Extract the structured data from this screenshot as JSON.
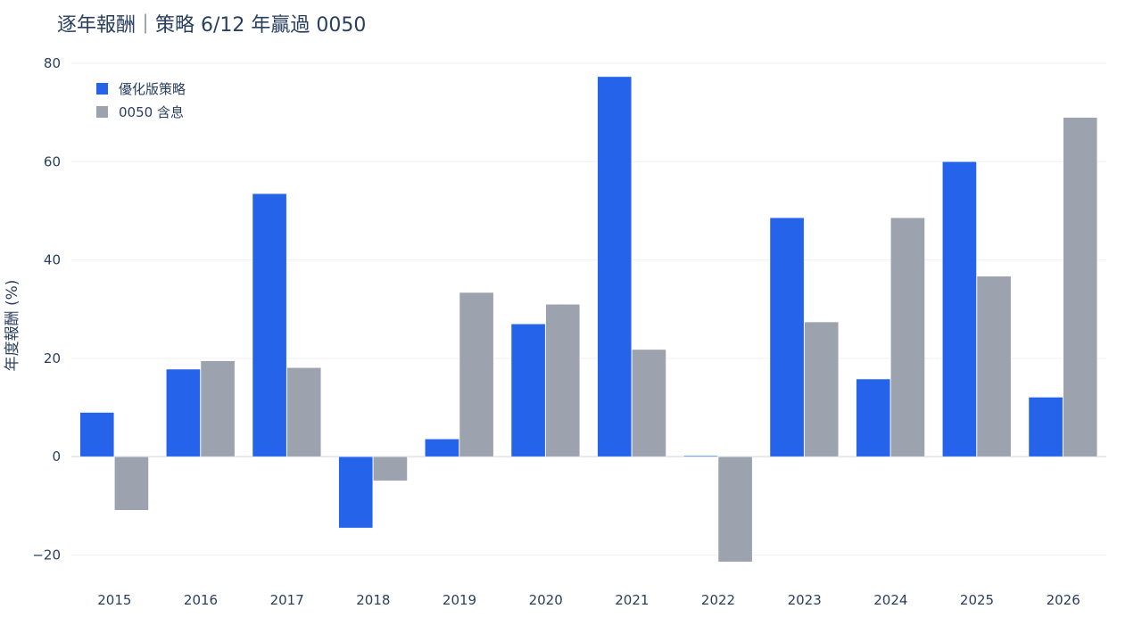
{
  "chart_data": {
    "type": "bar",
    "title": "逐年報酬｜策略 6/12 年贏過 0050",
    "xlabel": "",
    "ylabel": "年度報酬 (%)",
    "categories": [
      "2015",
      "2016",
      "2017",
      "2018",
      "2019",
      "2020",
      "2021",
      "2022",
      "2023",
      "2024",
      "2025",
      "2026"
    ],
    "series": [
      {
        "name": "優化版策略",
        "color": "#2563eb",
        "values": [
          9.0,
          17.8,
          53.5,
          -14.5,
          3.6,
          27.0,
          77.3,
          0.2,
          48.6,
          15.8,
          60.0,
          12.1
        ]
      },
      {
        "name": "0050 含息",
        "color": "#9ca3af",
        "values": [
          -10.9,
          19.5,
          18.1,
          -4.9,
          33.4,
          31.0,
          21.8,
          -21.4,
          27.4,
          48.6,
          36.7,
          69.0
        ]
      }
    ],
    "ylim": [
      -25,
      82
    ],
    "yticks": [
      -20,
      0,
      20,
      40,
      60,
      80
    ],
    "ytick_labels": [
      "−20",
      "0",
      "20",
      "40",
      "60",
      "80"
    ],
    "grid": true,
    "legend_position": "top-left"
  }
}
